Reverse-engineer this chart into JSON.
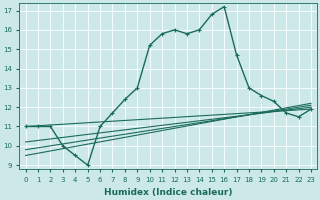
{
  "xlabel": "Humidex (Indice chaleur)",
  "background_color": "#cce8e8",
  "grid_color": "#b8d8d8",
  "line_color": "#1a6b5a",
  "xlim": [
    -0.5,
    23.5
  ],
  "ylim": [
    8.8,
    17.4
  ],
  "yticks": [
    9,
    10,
    11,
    12,
    13,
    14,
    15,
    16,
    17
  ],
  "xticks": [
    0,
    1,
    2,
    3,
    4,
    5,
    6,
    7,
    8,
    9,
    10,
    11,
    12,
    13,
    14,
    15,
    16,
    17,
    18,
    19,
    20,
    21,
    22,
    23
  ],
  "main_x": [
    0,
    1,
    2,
    3,
    4,
    5,
    6,
    7,
    8,
    9,
    10,
    11,
    12,
    13,
    14,
    15,
    16,
    17,
    18,
    19,
    20,
    21,
    22,
    23
  ],
  "main_y": [
    11.0,
    11.0,
    11.0,
    10.0,
    9.5,
    9.0,
    11.0,
    11.7,
    12.4,
    13.0,
    15.2,
    15.8,
    16.0,
    15.8,
    16.0,
    16.8,
    17.2,
    14.7,
    13.0,
    12.6,
    12.3,
    11.7,
    11.5,
    11.9
  ],
  "trend_lines": [
    {
      "x0": 0,
      "y0": 11.0,
      "x1": 23,
      "y1": 11.9
    },
    {
      "x0": 0,
      "y0": 10.2,
      "x1": 23,
      "y1": 12.0
    },
    {
      "x0": 0,
      "y0": 9.8,
      "x1": 23,
      "y1": 12.1
    },
    {
      "x0": 0,
      "y0": 9.5,
      "x1": 23,
      "y1": 12.2
    }
  ],
  "fontsize_tick": 5,
  "fontsize_xlabel": 6.5
}
